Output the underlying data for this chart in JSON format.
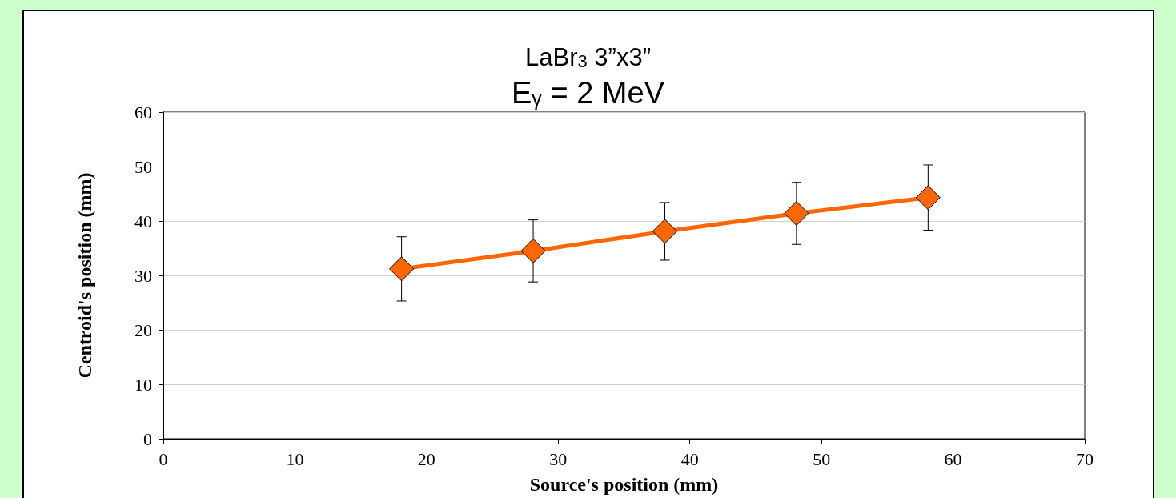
{
  "chart_data": {
    "type": "line",
    "title": "LaBr$_{3}$ 3”x3”",
    "subtitle": "E$_{γ}$ = 2 MeV",
    "xlabel": "Source's position (mm)",
    "ylabel": "Centroid's position (mm)",
    "x": [
      18.1,
      28.1,
      38.1,
      48.1,
      58.1
    ],
    "series": [
      {
        "color": "#ff6600",
        "values": [
          31.2,
          34.5,
          38.1,
          41.4,
          44.3
        ],
        "errors": [
          5.9,
          5.7,
          5.3,
          5.7,
          6.0
        ]
      }
    ],
    "xlim": [
      0,
      70
    ],
    "xticks": [
      0,
      10,
      20,
      30,
      40,
      50,
      60,
      70
    ],
    "ylim": [
      0,
      60
    ],
    "yticks": [
      0,
      10,
      20,
      30,
      40,
      50,
      60
    ],
    "grid": "y",
    "marker": "diamond",
    "line_style": "solid"
  }
}
